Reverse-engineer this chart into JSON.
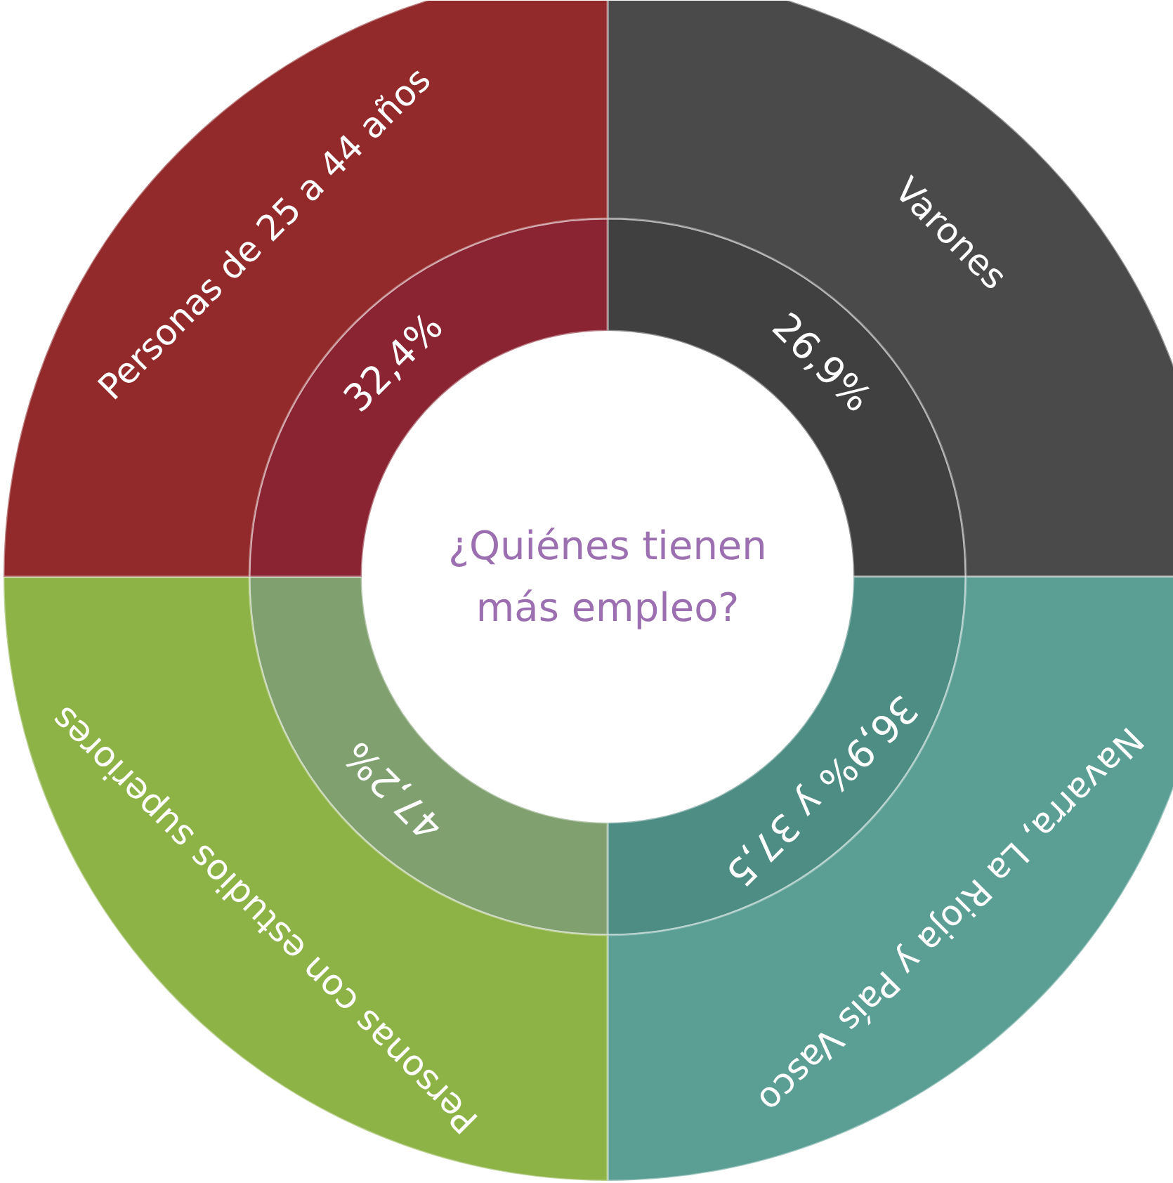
{
  "chart_data": {
    "type": "donut",
    "title": "¿Quiénes tienen más empleo?",
    "categories": [
      "Varones",
      "Navarra, La Rioja y País Vasco",
      "Personas con estudios superiores",
      "Personas de 25 a 44 años"
    ],
    "series": [
      {
        "values": [
          25,
          25,
          25,
          25
        ],
        "colors": [
          "#404040",
          "#4e8d84",
          "#80a070",
          "#8a2432"
        ]
      },
      {
        "values": [
          25,
          25,
          25,
          25
        ],
        "colors": [
          "#4b4a4b",
          "#5a9e94",
          "#8db246",
          "#922a2b"
        ]
      }
    ],
    "annotations": [
      "26,9%",
      "36,9% y 37,5",
      "47,2%",
      "32,4%"
    ]
  }
}
